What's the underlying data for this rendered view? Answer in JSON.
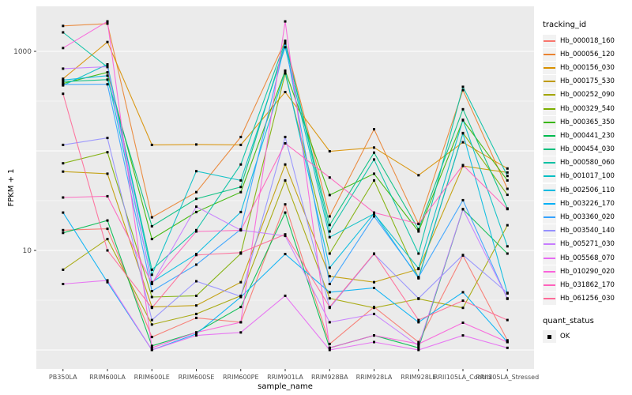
{
  "chart_data": {
    "type": "line",
    "title": "",
    "xlabel": "sample_name",
    "ylabel": "FPKM + 1",
    "yscale": "log10",
    "ylim": [
      1,
      2100
    ],
    "y_tick_labels": [
      "1000",
      "10"
    ],
    "y_tick_values": [
      1000,
      10
    ],
    "grid": true,
    "legend_position": "right",
    "panel_bg": "#EBEBEB",
    "grid_color": "#FFFFFF",
    "tick_label_color": "#4D4D4D",
    "point_color": "#000000",
    "categories": [
      "PB350LA",
      "RRIM600LA",
      "RRIM600LE",
      "RRIM600SE",
      "RRIM600PE",
      "RRIM901LA",
      "RRIM928BA",
      "RRIM928LA",
      "RRIM928LE",
      "RRII105LA_Control",
      "RRII105LA_Stressed"
    ],
    "legend_title": "tracking_id",
    "series": [
      {
        "name": "Hb_000018_160",
        "color": "#F8766D",
        "values": [
          16,
          16.5,
          1.35,
          2.1,
          1.9,
          29,
          1.15,
          2.7,
          1.2,
          8.9,
          1.25
        ]
      },
      {
        "name": "Hb_000056_120",
        "color": "#EA8331",
        "values": [
          1800,
          1900,
          21.5,
          38.5,
          138,
          1275,
          22,
          165,
          18.4,
          408,
          41.6
        ]
      },
      {
        "name": "Hb_000156_030",
        "color": "#D89000",
        "values": [
          530,
          1240,
          115,
          116,
          115,
          390,
          99,
          108,
          57,
          122,
          66.5
        ]
      },
      {
        "name": "Hb_000175_530",
        "color": "#C09B00",
        "values": [
          62,
          59,
          2.7,
          2.8,
          4.8,
          73,
          5.5,
          4.8,
          6.5,
          70.6,
          60.7
        ]
      },
      {
        "name": "Hb_000252_090",
        "color": "#A3A500",
        "values": [
          6.4,
          13,
          1.8,
          2.3,
          3.5,
          50.5,
          3.3,
          2.65,
          3.26,
          2.65,
          17.9
        ]
      },
      {
        "name": "Hb_000329_540",
        "color": "#7CAE00",
        "values": [
          75,
          97,
          3.4,
          3.5,
          9.3,
          600,
          9.3,
          50.5,
          5.3,
          151,
          36.2
        ]
      },
      {
        "name": "Hb_000365_350",
        "color": "#39B600",
        "values": [
          475,
          615,
          13,
          24.3,
          38.5,
          640,
          36,
          59,
          15.5,
          203,
          50.5
        ]
      },
      {
        "name": "Hb_000441_230",
        "color": "#00BB4E",
        "values": [
          15,
          20,
          1.1,
          1.5,
          2.7,
          24,
          1.05,
          1.4,
          1.05,
          25.9,
          9.3
        ]
      },
      {
        "name": "Hb_000454_030",
        "color": "#00BF7D",
        "values": [
          497,
          520,
          17.5,
          33,
          43.4,
          1200,
          18,
          96,
          16.3,
          262,
          26.4
        ]
      },
      {
        "name": "Hb_000580_060",
        "color": "#00C1A3",
        "values": [
          1550,
          695,
          6.4,
          16,
          73,
          1250,
          15.5,
          82,
          9.3,
          440,
          56
        ]
      },
      {
        "name": "Hb_001017_100",
        "color": "#00BFC4",
        "values": [
          455,
          740,
          5.7,
          62.5,
          50.5,
          1100,
          13.6,
          23.3,
          6.6,
          205,
          11
        ]
      },
      {
        "name": "Hb_002506_110",
        "color": "#00BAE0",
        "values": [
          515,
          570,
          4.8,
          9.2,
          24.3,
          630,
          6.7,
          23.5,
          5.25,
          150,
          3.7
        ]
      },
      {
        "name": "Hb_003226_170",
        "color": "#00B0F6",
        "values": [
          24,
          4.8,
          1.0,
          1.45,
          3.4,
          9.2,
          3.8,
          4.2,
          1.9,
          3.8,
          1.2
        ]
      },
      {
        "name": "Hb_003360_020",
        "color": "#35A2FF",
        "values": [
          465,
          467,
          3.9,
          7.2,
          16.3,
          1220,
          4.6,
          22,
          5.4,
          32,
          3.26
        ]
      },
      {
        "name": "Hb_003540_140",
        "color": "#9590FF",
        "values": [
          115,
          135,
          2.0,
          4.9,
          3.45,
          138,
          2.65,
          9.2,
          3.3,
          9.0,
          3.75
        ]
      },
      {
        "name": "Hb_005271_030",
        "color": "#C77CFF",
        "values": [
          670,
          700,
          4.6,
          27.5,
          16.0,
          14,
          1.9,
          2.3,
          1.1,
          26,
          3.3
        ]
      },
      {
        "name": "Hb_005568_070",
        "color": "#E76BF3",
        "values": [
          4.6,
          5.0,
          1.0,
          1.4,
          1.5,
          3.5,
          1.0,
          1.2,
          1.0,
          1.4,
          1.05
        ]
      },
      {
        "name": "Hb_010290_020",
        "color": "#FA62DB",
        "values": [
          1080,
          2000,
          1.05,
          1.5,
          1.9,
          2000,
          1.05,
          1.4,
          1.15,
          1.88,
          1.2
        ]
      },
      {
        "name": "Hb_031862_170",
        "color": "#FF62BC",
        "values": [
          34,
          35,
          4.7,
          15.5,
          15.9,
          119,
          54,
          24,
          18.5,
          72,
          26
        ]
      },
      {
        "name": "Hb_061256_030",
        "color": "#FF6A98",
        "values": [
          375,
          10,
          2.65,
          9.0,
          9.5,
          14.5,
          2.7,
          9.3,
          2.0,
          3.13,
          2.0
        ]
      }
    ],
    "quant_status": {
      "title": "quant_status",
      "items": [
        {
          "label": "OK"
        }
      ]
    }
  }
}
